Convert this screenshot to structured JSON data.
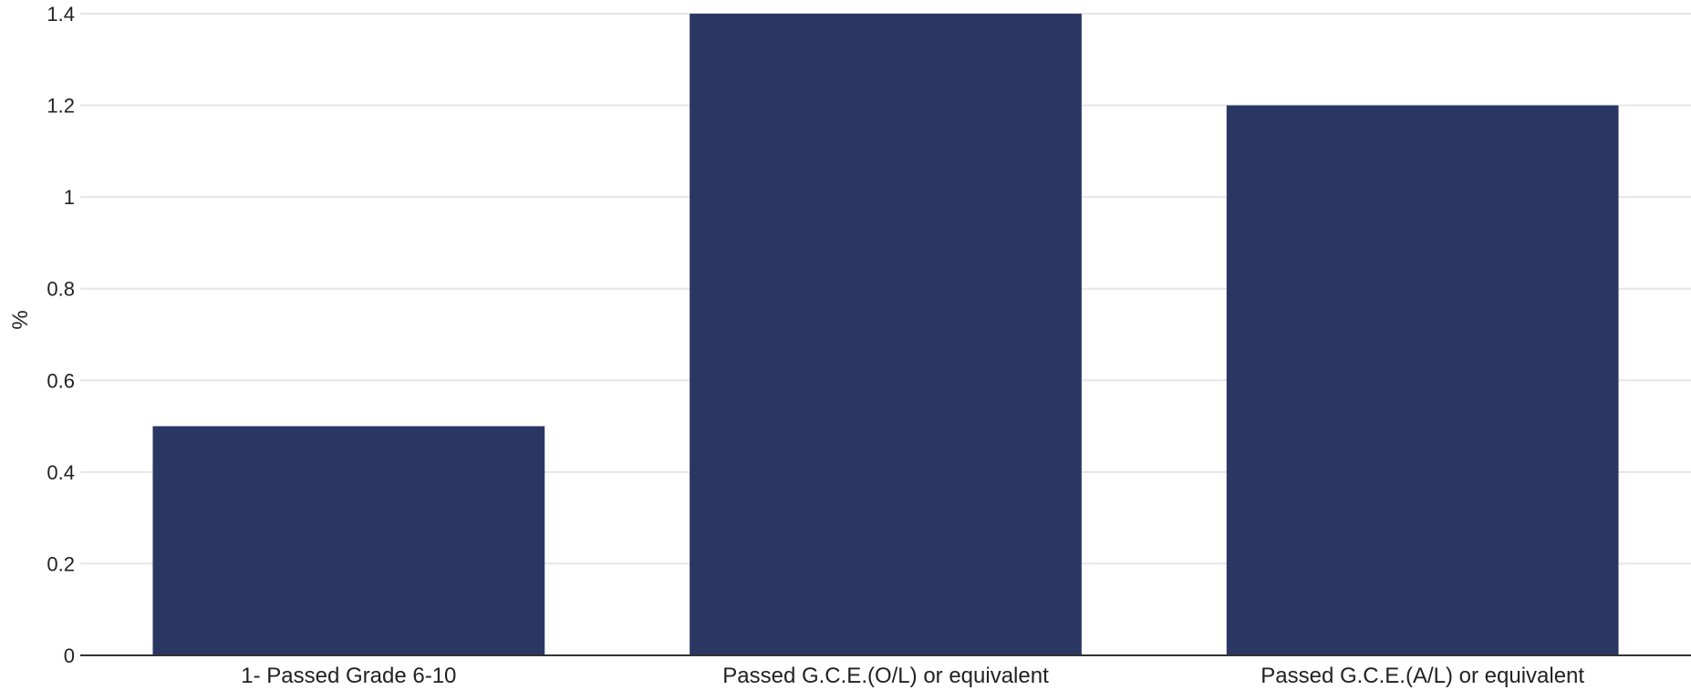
{
  "chart_data": {
    "type": "bar",
    "title": "",
    "xlabel": "",
    "ylabel": "%",
    "categories": [
      "1- Passed Grade 6-10",
      "Passed G.C.E.(O/L) or equivalent",
      "Passed G.C.E.(A/L) or equivalent"
    ],
    "values": [
      0.5,
      1.4,
      1.2
    ],
    "ylim": [
      0,
      1.4
    ],
    "yticks": [
      "0",
      "0.2",
      "0.4",
      "0.6",
      "0.8",
      "1",
      "1.2",
      "1.4"
    ],
    "grid": true,
    "legend": "none",
    "colors": {
      "bar": "#2b3763",
      "grid": "#e6e6e6",
      "axis": "#333333"
    }
  }
}
